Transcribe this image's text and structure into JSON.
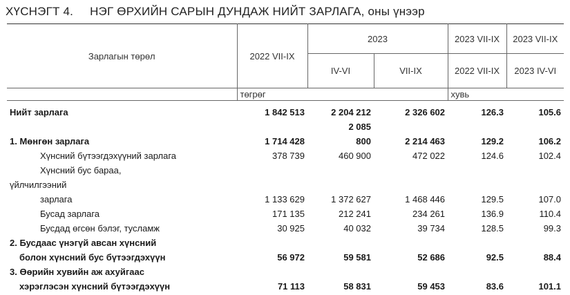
{
  "title": {
    "number": "ХҮСНЭГТ 4.",
    "text": "НЭГ ӨРХИЙН САРЫН ДУНДАЖ НИЙТ ЗАРЛАГА, оны үнээр"
  },
  "header": {
    "col0": "Зарлагын төрөл",
    "col1": "2022 VII-IX",
    "group2023": "2023",
    "col2": "IV-VI",
    "col3": "VII-IX",
    "col4_top": "2023 VII-IX",
    "col4_bottom": "2022 VII-IX",
    "col5_top": "2023 VII-IX",
    "col5_bottom": "2023 IV-VI",
    "unit_tugrik": "төгрөг",
    "unit_percent": "хувь"
  },
  "rows": [
    {
      "label": "Нийт зарлага",
      "v1": "1 842 513",
      "v2": "2 204 212",
      "v3": "2 326 602",
      "p1": "126.3",
      "p2": "105.6",
      "bold": true
    },
    {
      "label": "",
      "v1": "",
      "v2": "2 085",
      "v3": "",
      "p1": "",
      "p2": "",
      "bold": true
    },
    {
      "label": "1. Мөнгөн зарлага",
      "v1": "1 714 428",
      "v2": "800",
      "v3": "2 214 463",
      "p1": "129.2",
      "p2": "106.2",
      "bold": true
    },
    {
      "label": "Хүнсний бүтээгдэхүүний зарлага",
      "v1": "378 739",
      "v2": "460 900",
      "v3": "472 022",
      "p1": "124.6",
      "p2": "102.4",
      "indent": true
    },
    {
      "label": "Хүнсний бус бараа,",
      "v1": "",
      "v2": "",
      "v3": "",
      "p1": "",
      "p2": "",
      "indent": true
    },
    {
      "label": "үйлчилгээний",
      "v1": "",
      "v2": "",
      "v3": "",
      "p1": "",
      "p2": ""
    },
    {
      "label": "зарлага",
      "v1": "1 133 629",
      "v2": "1 372 627",
      "v3": "1 468 446",
      "p1": "129.5",
      "p2": "107.0",
      "indent": true
    },
    {
      "label": "Бусад зарлага",
      "v1": "171 135",
      "v2": "212 241",
      "v3": "234 261",
      "p1": "136.9",
      "p2": "110.4",
      "indent": true
    },
    {
      "label": "Бусдад өгсөн бэлэг, тусламж",
      "v1": "30 925",
      "v2": "40 032",
      "v3": "39 734",
      "p1": "128.5",
      "p2": "99.3",
      "indent": true
    },
    {
      "label": "2. Бусдаас үнэгүй авсан хүнсний",
      "v1": "",
      "v2": "",
      "v3": "",
      "p1": "",
      "p2": "",
      "bold": true
    },
    {
      "label": "болон хүнсний бус бүтээгдэхүүн",
      "v1": "56 972",
      "v2": "59 581",
      "v3": "52 686",
      "p1": "92.5",
      "p2": "88.4",
      "bold": true,
      "indent2": true
    },
    {
      "label": "3. Өөрийн хувийн аж ахуйгаас",
      "v1": "",
      "v2": "",
      "v3": "",
      "p1": "",
      "p2": "",
      "bold": true
    },
    {
      "label": "хэрэглэсэн хүнсний бүтээгдэхүүн",
      "v1": "71 113",
      "v2": "58 831",
      "v3": "59 453",
      "p1": "83.6",
      "p2": "101.1",
      "bold": true,
      "indent2": true
    }
  ]
}
